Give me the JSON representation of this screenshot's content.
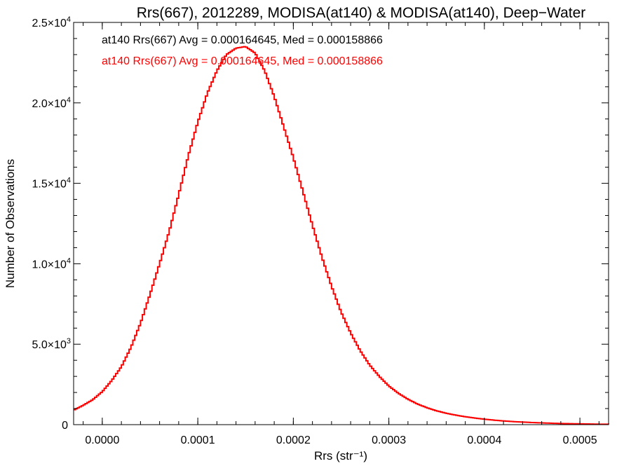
{
  "chart_data": {
    "type": "line",
    "title": "Rrs(667), 2012289, MODISA(at140) & MODISA(at140), Deep−Water",
    "xlabel": "Rrs (str⁻¹)",
    "ylabel": "Number of Observations",
    "xlim": [
      -3e-05,
      0.00053
    ],
    "ylim": [
      0,
      25000
    ],
    "x_ticks": [
      {
        "value": 0.0,
        "label": "0.0000"
      },
      {
        "value": 0.0001,
        "label": "0.0001"
      },
      {
        "value": 0.0002,
        "label": "0.0002"
      },
      {
        "value": 0.0003,
        "label": "0.0003"
      },
      {
        "value": 0.0004,
        "label": "0.0004"
      },
      {
        "value": 0.0005,
        "label": "0.0005"
      }
    ],
    "y_ticks": [
      {
        "value": 0,
        "label": "0",
        "exp": ""
      },
      {
        "value": 5000,
        "label": "5.0×10",
        "exp": "3"
      },
      {
        "value": 10000,
        "label": "1.0×10",
        "exp": "4"
      },
      {
        "value": 15000,
        "label": "1.5×10",
        "exp": "4"
      },
      {
        "value": 20000,
        "label": "2.0×10",
        "exp": "4"
      },
      {
        "value": 25000,
        "label": "2.5×10",
        "exp": "4"
      }
    ],
    "legend": [
      {
        "text": "at140 Rrs(667) Avg = 0.000164645, Med = 0.000158866",
        "color": "#000000"
      },
      {
        "text": "at140 Rrs(667) Avg = 0.000164645, Med = 0.000158866",
        "color": "#ff0000"
      }
    ],
    "legend_position": "top-left",
    "grid": false,
    "series": [
      {
        "color": "#ff0000",
        "step": true,
        "points": [
          [
            -3e-05,
            900
          ],
          [
            -2e-05,
            1200
          ],
          [
            -1e-05,
            1550
          ],
          [
            0.0,
            2050
          ],
          [
            1e-05,
            2750
          ],
          [
            2e-05,
            3600
          ],
          [
            3e-05,
            4800
          ],
          [
            4e-05,
            6300
          ],
          [
            5e-05,
            8100
          ],
          [
            6e-05,
            10000
          ],
          [
            7e-05,
            12000
          ],
          [
            8e-05,
            14300
          ],
          [
            9e-05,
            16700
          ],
          [
            0.0001,
            18800
          ],
          [
            0.00011,
            20600
          ],
          [
            0.00012,
            22000
          ],
          [
            0.00013,
            23000
          ],
          [
            0.00014,
            23400
          ],
          [
            0.00015,
            23500
          ],
          [
            0.00016,
            23100
          ],
          [
            0.00017,
            22000
          ],
          [
            0.00018,
            20400
          ],
          [
            0.00019,
            18500
          ],
          [
            0.0002,
            16600
          ],
          [
            0.00021,
            14500
          ],
          [
            0.00022,
            12400
          ],
          [
            0.00023,
            10400
          ],
          [
            0.00024,
            8600
          ],
          [
            0.00025,
            7000
          ],
          [
            0.00026,
            5700
          ],
          [
            0.00027,
            4600
          ],
          [
            0.00028,
            3700
          ],
          [
            0.00029,
            3000
          ],
          [
            0.0003,
            2400
          ],
          [
            0.00031,
            1950
          ],
          [
            0.00032,
            1580
          ],
          [
            0.00033,
            1280
          ],
          [
            0.00034,
            1050
          ],
          [
            0.00035,
            860
          ],
          [
            0.00036,
            710
          ],
          [
            0.00037,
            590
          ],
          [
            0.00038,
            490
          ],
          [
            0.00039,
            410
          ],
          [
            0.0004,
            340
          ],
          [
            0.00041,
            280
          ],
          [
            0.00042,
            230
          ],
          [
            0.00043,
            190
          ],
          [
            0.00044,
            160
          ],
          [
            0.00045,
            130
          ],
          [
            0.00046,
            110
          ],
          [
            0.00047,
            90
          ],
          [
            0.00048,
            70
          ],
          [
            0.00049,
            60
          ],
          [
            0.0005,
            50
          ],
          [
            0.00051,
            40
          ],
          [
            0.00052,
            30
          ],
          [
            0.00053,
            25
          ]
        ]
      }
    ]
  }
}
